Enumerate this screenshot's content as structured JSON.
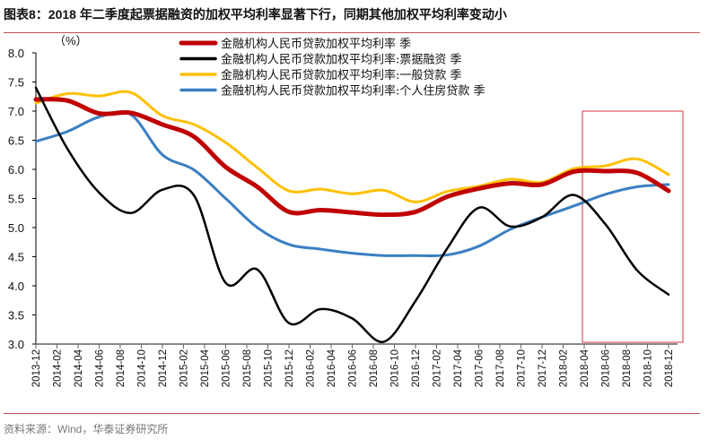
{
  "title": "图表8：2018 年二季度起票据融资的加权平均利率显著下行，同期其他加权平均利率变动小",
  "source": "资料来源：Wind，华泰证券研究所",
  "chart_data": {
    "type": "line",
    "title": "图表8：2018 年二季度起票据融资的加权平均利率显著下行，同期其他加权平均利率变动小",
    "ylabel": "（%）",
    "xlabel": "",
    "ylim": [
      3.0,
      8.0
    ],
    "yticks": [
      "8.0",
      "7.5",
      "7.0",
      "6.5",
      "6.0",
      "5.5",
      "5.0",
      "4.5",
      "4.0",
      "3.5",
      "3.0"
    ],
    "xticks": [
      "2013-12",
      "2014-02",
      "2014-04",
      "2014-06",
      "2014-08",
      "2014-10",
      "2014-12",
      "2015-02",
      "2015-04",
      "2015-06",
      "2015-08",
      "2015-10",
      "2015-12",
      "2016-02",
      "2016-04",
      "2016-06",
      "2016-08",
      "2016-10",
      "2016-12",
      "2017-02",
      "2017-04",
      "2017-06",
      "2017-08",
      "2017-10",
      "2017-12",
      "2018-02",
      "2018-04",
      "2018-06",
      "2018-08",
      "2018-10",
      "2018-12"
    ],
    "x": [
      "2013-12",
      "2014-03",
      "2014-06",
      "2014-09",
      "2014-12",
      "2015-03",
      "2015-06",
      "2015-09",
      "2015-12",
      "2016-03",
      "2016-06",
      "2016-09",
      "2016-12",
      "2017-03",
      "2017-06",
      "2017-09",
      "2017-12",
      "2018-03",
      "2018-06",
      "2018-09",
      "2018-12"
    ],
    "grid": false,
    "legend_position": "top-center",
    "highlight_range": [
      "2018-04",
      "2018-12"
    ],
    "highlight_color": "#d9363e",
    "series": [
      {
        "name": "金融机构人民币贷款加权平均利率 季",
        "color": "#c00000",
        "values": [
          7.2,
          7.18,
          6.96,
          6.97,
          6.77,
          6.56,
          6.04,
          5.7,
          5.27,
          5.3,
          5.26,
          5.22,
          5.27,
          5.53,
          5.67,
          5.76,
          5.74,
          5.96,
          5.97,
          5.94,
          5.63
        ]
      },
      {
        "name": "金融机构人民币贷款加权平均利率:票据融资 季",
        "color": "#000000",
        "values": [
          7.4,
          6.35,
          5.6,
          5.25,
          5.65,
          5.55,
          4.05,
          4.28,
          3.36,
          3.6,
          3.44,
          3.04,
          3.74,
          4.64,
          5.34,
          5.02,
          5.18,
          5.56,
          5.06,
          4.27,
          3.85
        ]
      },
      {
        "name": "金融机构人民币贷款加权平均利率:一般贷款 季",
        "color": "#ffc000",
        "values": [
          7.14,
          7.3,
          7.26,
          7.32,
          6.92,
          6.77,
          6.46,
          6.03,
          5.63,
          5.66,
          5.58,
          5.64,
          5.44,
          5.62,
          5.71,
          5.83,
          5.78,
          6.01,
          6.06,
          6.18,
          5.91
        ]
      },
      {
        "name": "金融机构人民币贷款加权平均利率:个人住房贷款 季",
        "color": "#3a7fc2",
        "values": [
          6.48,
          6.65,
          6.9,
          6.94,
          6.25,
          5.99,
          5.5,
          5.0,
          4.71,
          4.63,
          4.56,
          4.52,
          4.52,
          4.53,
          4.68,
          4.97,
          5.18,
          5.37,
          5.57,
          5.7,
          5.74
        ]
      }
    ]
  }
}
